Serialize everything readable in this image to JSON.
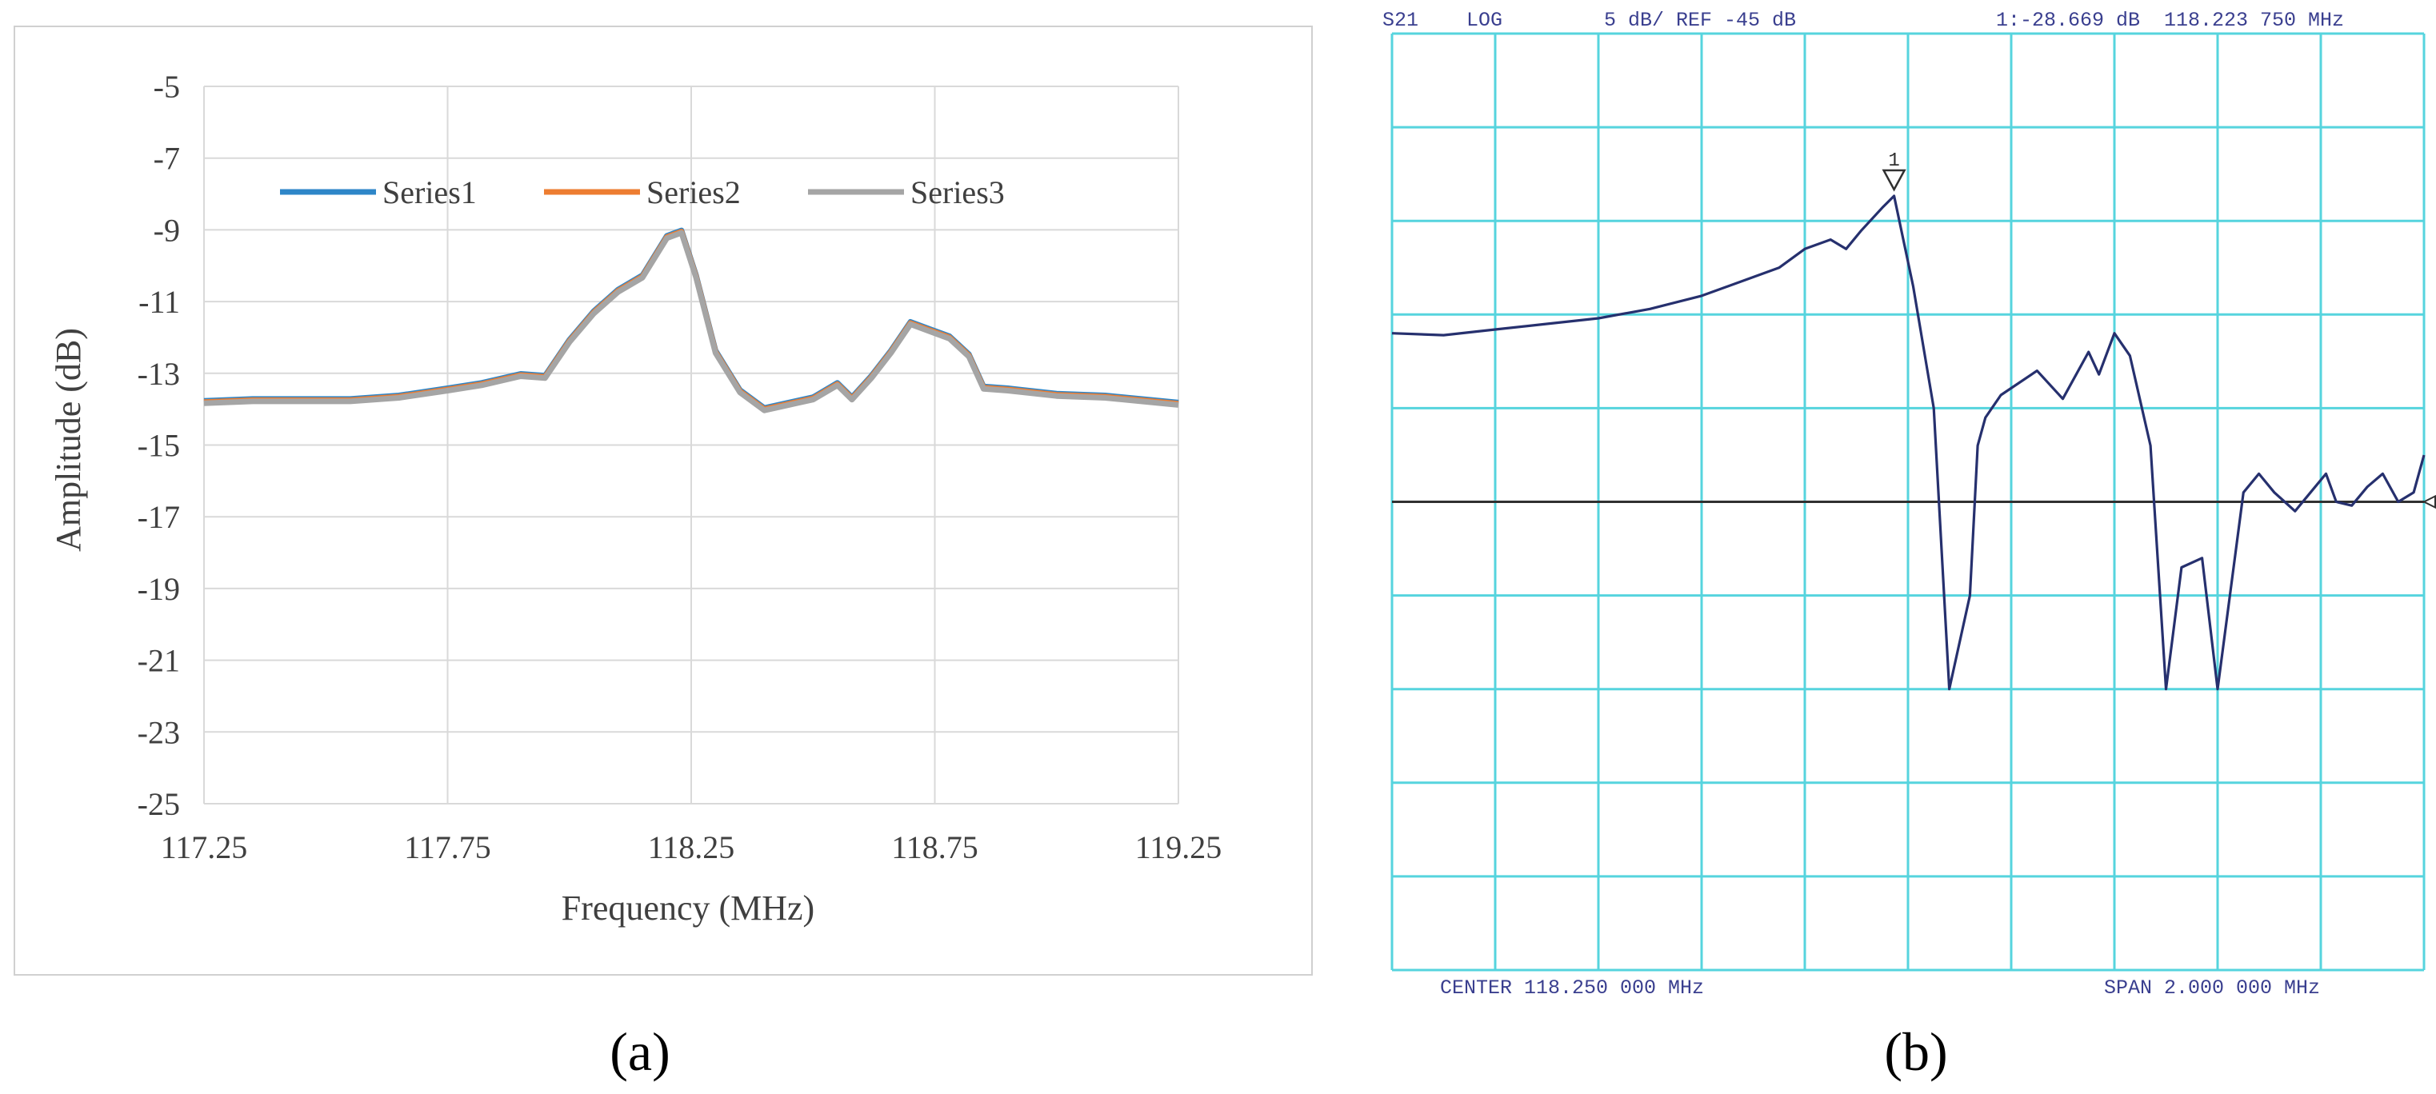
{
  "panel_labels": {
    "a": "(a)",
    "b": "(b)"
  },
  "colors": {
    "series1": "#2e86c8",
    "series2": "#ed7d31",
    "series3": "#a5a5a5",
    "panel_a_grid": "#d9d9d9",
    "panel_a_border": "#d0d0d0",
    "panel_b_grid": "#56d4de",
    "panel_b_trace": "#26306e",
    "panel_b_text": "#3a3f8f",
    "panel_b_ref": "#303030"
  },
  "chart_data": [
    {
      "type": "line",
      "title": "",
      "xlabel": "Frequency (MHz)",
      "ylabel": "Amplitude (dB)",
      "xlim": [
        117.25,
        119.25
      ],
      "ylim": [
        -25,
        -5
      ],
      "xticks": [
        "117.25",
        "117.75",
        "118.25",
        "118.75",
        "119.25"
      ],
      "yticks": [
        "-5",
        "-7",
        "-9",
        "-11",
        "-13",
        "-15",
        "-17",
        "-19",
        "-21",
        "-23",
        "-25"
      ],
      "grid": true,
      "legend_position": "top-center",
      "series": [
        {
          "name": "Series1",
          "x": [
            117.25,
            117.35,
            117.45,
            117.55,
            117.65,
            117.75,
            117.82,
            117.9,
            117.95,
            118.0,
            118.05,
            118.1,
            118.15,
            118.2,
            118.23,
            118.26,
            118.3,
            118.35,
            118.4,
            118.45,
            118.5,
            118.55,
            118.58,
            118.62,
            118.66,
            118.7,
            118.74,
            118.78,
            118.82,
            118.85,
            118.9,
            119.0,
            119.1,
            119.25
          ],
          "values": [
            -13.8,
            -13.75,
            -13.75,
            -13.75,
            -13.65,
            -13.45,
            -13.3,
            -13.05,
            -13.1,
            -12.1,
            -11.3,
            -10.7,
            -10.3,
            -9.2,
            -9.05,
            -10.3,
            -12.4,
            -13.5,
            -14.0,
            -13.85,
            -13.7,
            -13.3,
            -13.7,
            -13.1,
            -12.4,
            -11.6,
            -11.8,
            -12.0,
            -12.5,
            -13.4,
            -13.45,
            -13.6,
            -13.65,
            -13.85
          ]
        },
        {
          "name": "Series2",
          "x": [
            117.25,
            117.35,
            117.45,
            117.55,
            117.65,
            117.75,
            117.82,
            117.9,
            117.95,
            118.0,
            118.05,
            118.1,
            118.15,
            118.2,
            118.23,
            118.26,
            118.3,
            118.35,
            118.4,
            118.45,
            118.5,
            118.55,
            118.58,
            118.62,
            118.66,
            118.7,
            118.74,
            118.78,
            118.82,
            118.85,
            118.9,
            119.0,
            119.1,
            119.25
          ],
          "values": [
            -13.8,
            -13.75,
            -13.75,
            -13.75,
            -13.65,
            -13.45,
            -13.3,
            -13.05,
            -13.1,
            -12.1,
            -11.3,
            -10.7,
            -10.3,
            -9.2,
            -9.05,
            -10.3,
            -12.4,
            -13.5,
            -14.0,
            -13.85,
            -13.7,
            -13.3,
            -13.7,
            -13.1,
            -12.4,
            -11.6,
            -11.8,
            -12.0,
            -12.5,
            -13.4,
            -13.45,
            -13.6,
            -13.65,
            -13.85
          ]
        },
        {
          "name": "Series3",
          "x": [
            117.25,
            117.35,
            117.45,
            117.55,
            117.65,
            117.75,
            117.82,
            117.9,
            117.95,
            118.0,
            118.05,
            118.1,
            118.15,
            118.2,
            118.23,
            118.26,
            118.3,
            118.35,
            118.4,
            118.45,
            118.5,
            118.55,
            118.58,
            118.62,
            118.66,
            118.7,
            118.74,
            118.78,
            118.82,
            118.85,
            118.9,
            119.0,
            119.1,
            119.25
          ],
          "values": [
            -13.8,
            -13.75,
            -13.75,
            -13.75,
            -13.65,
            -13.45,
            -13.3,
            -13.05,
            -13.1,
            -12.1,
            -11.3,
            -10.7,
            -10.3,
            -9.2,
            -9.05,
            -10.3,
            -12.4,
            -13.5,
            -14.0,
            -13.85,
            -13.7,
            -13.3,
            -13.7,
            -13.1,
            -12.4,
            -11.6,
            -11.8,
            -12.0,
            -12.5,
            -13.4,
            -13.45,
            -13.6,
            -13.65,
            -13.85
          ]
        }
      ]
    },
    {
      "type": "line",
      "header": {
        "param": "S21",
        "format": "LOG",
        "scale": "5 dB/ REF -45 dB",
        "marker_readout": "1:-28.669 dB",
        "marker_freq": "118.223 750 MHz"
      },
      "footer": {
        "center": "CENTER 118.250 000 MHz",
        "span": "SPAN  2.000 000 MHz"
      },
      "marker_label": "1",
      "xlim": [
        117.25,
        119.25
      ],
      "ylim": [
        -70,
        -20
      ],
      "divisions": {
        "x": 10,
        "y": 10
      },
      "reference_level": -45,
      "series": [
        {
          "name": "",
          "x": [
            117.25,
            117.35,
            117.45,
            117.55,
            117.65,
            117.75,
            117.85,
            117.95,
            118.0,
            118.05,
            118.1,
            118.13,
            118.16,
            118.2,
            118.223,
            118.26,
            118.3,
            118.33,
            118.37,
            118.385,
            118.4,
            118.43,
            118.5,
            118.55,
            118.6,
            118.62,
            118.65,
            118.68,
            118.72,
            118.75,
            118.78,
            118.82,
            118.85,
            118.9,
            118.93,
            118.96,
            118.98,
            119.0,
            119.03,
            119.06,
            119.08,
            119.11,
            119.14,
            119.17,
            119.2,
            119.23,
            119.25
          ],
          "values": [
            -36.0,
            -36.1,
            -35.8,
            -35.5,
            -35.2,
            -34.7,
            -34.0,
            -33.0,
            -32.5,
            -31.5,
            -31.0,
            -31.5,
            -30.5,
            -29.3,
            -28.669,
            -33.5,
            -40.0,
            -55.0,
            -50.0,
            -42.0,
            -40.5,
            -39.3,
            -38.0,
            -39.5,
            -37.0,
            -38.2,
            -36.0,
            -37.2,
            -42.0,
            -55.0,
            -48.5,
            -48.0,
            -55.0,
            -44.5,
            -43.5,
            -44.5,
            -45.0,
            -45.5,
            -44.5,
            -43.5,
            -45.0,
            -45.2,
            -44.2,
            -43.5,
            -45.0,
            -44.5,
            -42.5
          ]
        }
      ]
    }
  ]
}
